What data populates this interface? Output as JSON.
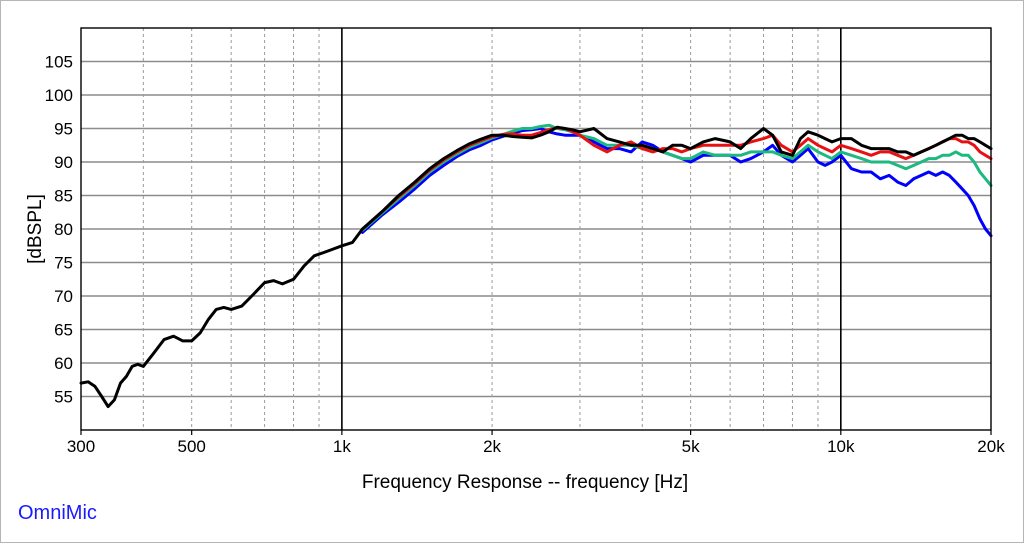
{
  "chart_data": {
    "type": "line",
    "title": "",
    "xlabel": "Frequency Response -- frequency [Hz]",
    "ylabel": "[dBSPL]",
    "x_scale": "log",
    "xlim": [
      300,
      20000
    ],
    "ylim": [
      50,
      110
    ],
    "grid": true,
    "x_major_ticks": [
      {
        "value": 300,
        "label": "300"
      },
      {
        "value": 500,
        "label": "500"
      },
      {
        "value": 1000,
        "label": "1k"
      },
      {
        "value": 2000,
        "label": "2k"
      },
      {
        "value": 5000,
        "label": "5k"
      },
      {
        "value": 10000,
        "label": "10k"
      },
      {
        "value": 20000,
        "label": "20k"
      }
    ],
    "x_minor_ticks": [
      400,
      600,
      700,
      800,
      900,
      3000,
      4000,
      6000,
      7000,
      8000,
      9000
    ],
    "y_ticks": [
      55,
      60,
      65,
      70,
      75,
      80,
      85,
      90,
      95,
      100,
      105
    ],
    "series": [
      {
        "color": "#0000ff",
        "x": [
          1100,
          1200,
          1300,
          1400,
          1500,
          1600,
          1700,
          1800,
          1900,
          2000,
          2100,
          2200,
          2300,
          2400,
          2500,
          2600,
          2700,
          2800,
          2900,
          3000,
          3200,
          3400,
          3600,
          3800,
          4000,
          4200,
          4400,
          4600,
          4800,
          5000,
          5300,
          5600,
          6000,
          6300,
          6600,
          7000,
          7300,
          7600,
          8000,
          8300,
          8600,
          9000,
          9300,
          9600,
          10000,
          10500,
          11000,
          11500,
          12000,
          12500,
          13000,
          13500,
          14000,
          14500,
          15000,
          15500,
          16000,
          16500,
          17000,
          17500,
          18000,
          18500,
          19000,
          19500,
          20000
        ],
        "y": [
          79.5,
          82.0,
          84.0,
          86.0,
          88.0,
          89.5,
          90.8,
          91.8,
          92.5,
          93.3,
          93.8,
          94.3,
          94.7,
          94.8,
          95.0,
          94.5,
          94.2,
          94.0,
          94.0,
          94.0,
          93.0,
          92.0,
          92.0,
          91.5,
          93.0,
          92.5,
          91.5,
          91.0,
          90.5,
          90.0,
          91.0,
          91.0,
          91.0,
          90.0,
          90.5,
          91.5,
          92.5,
          91.0,
          90.0,
          91.0,
          92.0,
          90.0,
          89.5,
          90.0,
          91.0,
          89.0,
          88.5,
          88.5,
          87.5,
          88.0,
          87.0,
          86.5,
          87.5,
          88.0,
          88.5,
          88.0,
          88.5,
          88.0,
          87.0,
          86.0,
          85.0,
          83.5,
          81.5,
          80.0,
          79.0
        ]
      },
      {
        "color": "#1db97f",
        "x": [
          1100,
          1200,
          1300,
          1400,
          1500,
          1600,
          1700,
          1800,
          1900,
          2000,
          2100,
          2200,
          2300,
          2400,
          2500,
          2600,
          2700,
          2800,
          2900,
          3000,
          3200,
          3400,
          3600,
          3800,
          4000,
          4200,
          4400,
          4600,
          4800,
          5000,
          5300,
          5600,
          6000,
          6300,
          6600,
          7000,
          7300,
          7600,
          8000,
          8300,
          8600,
          9000,
          9300,
          9600,
          10000,
          10500,
          11000,
          11500,
          12000,
          12500,
          13000,
          13500,
          14000,
          14500,
          15000,
          15500,
          16000,
          16500,
          17000,
          17500,
          18000,
          18500,
          19000,
          19500,
          20000
        ],
        "y": [
          79.8,
          82.3,
          84.5,
          86.5,
          88.5,
          90.0,
          91.2,
          92.2,
          92.9,
          93.6,
          94.1,
          94.6,
          95.0,
          95.0,
          95.3,
          95.5,
          95.0,
          94.8,
          94.5,
          94.0,
          93.5,
          92.5,
          92.5,
          92.5,
          92.0,
          92.0,
          91.5,
          91.0,
          90.5,
          90.5,
          91.5,
          91.0,
          91.0,
          91.0,
          91.5,
          91.5,
          91.5,
          91.0,
          90.5,
          91.5,
          92.5,
          91.5,
          91.0,
          90.5,
          91.5,
          91.0,
          90.5,
          90.0,
          90.0,
          90.0,
          89.5,
          89.0,
          89.5,
          90.0,
          90.5,
          90.5,
          91.0,
          91.0,
          91.5,
          91.0,
          91.0,
          90.0,
          88.5,
          87.5,
          86.5
        ]
      },
      {
        "color": "#e81010",
        "x": [
          1100,
          1200,
          1300,
          1400,
          1500,
          1600,
          1700,
          1800,
          1900,
          2000,
          2100,
          2200,
          2300,
          2400,
          2500,
          2600,
          2700,
          2800,
          2900,
          3000,
          3200,
          3400,
          3600,
          3800,
          4000,
          4200,
          4400,
          4600,
          4800,
          5000,
          5300,
          5600,
          6000,
          6300,
          6600,
          7000,
          7300,
          7600,
          8000,
          8300,
          8600,
          9000,
          9300,
          9600,
          10000,
          10500,
          11000,
          11500,
          12000,
          12500,
          13000,
          13500,
          14000,
          14500,
          15000,
          15500,
          16000,
          16500,
          17000,
          17500,
          18000,
          18500,
          19000,
          19500,
          20000
        ],
        "y": [
          80.0,
          82.5,
          84.8,
          86.8,
          88.8,
          90.3,
          91.5,
          92.5,
          93.2,
          93.8,
          94.1,
          94.2,
          94.0,
          94.0,
          94.4,
          94.8,
          95.1,
          95.0,
          94.5,
          94.0,
          92.5,
          91.5,
          92.5,
          93.0,
          92.0,
          91.5,
          92.0,
          92.0,
          91.5,
          92.0,
          92.5,
          92.5,
          92.5,
          92.5,
          93.0,
          93.5,
          94.0,
          92.5,
          91.5,
          92.5,
          93.5,
          92.5,
          92.0,
          91.5,
          92.5,
          92.0,
          91.5,
          91.0,
          91.5,
          91.5,
          91.0,
          90.5,
          91.0,
          91.5,
          92.0,
          92.5,
          93.0,
          93.5,
          93.5,
          93.0,
          93.0,
          92.5,
          91.5,
          91.0,
          90.5
        ]
      },
      {
        "color": "#000000",
        "x": [
          300,
          310,
          320,
          330,
          340,
          350,
          360,
          370,
          380,
          390,
          400,
          420,
          440,
          460,
          480,
          500,
          520,
          540,
          560,
          580,
          600,
          630,
          660,
          700,
          730,
          760,
          800,
          840,
          880,
          920,
          960,
          1000,
          1050,
          1100,
          1200,
          1300,
          1400,
          1500,
          1600,
          1700,
          1800,
          1900,
          2000,
          2100,
          2200,
          2300,
          2400,
          2500,
          2600,
          2700,
          2800,
          2900,
          3000,
          3200,
          3400,
          3600,
          3800,
          4000,
          4200,
          4400,
          4600,
          4800,
          5000,
          5300,
          5600,
          6000,
          6300,
          6600,
          7000,
          7300,
          7600,
          8000,
          8300,
          8600,
          9000,
          9300,
          9600,
          10000,
          10500,
          11000,
          11500,
          12000,
          12500,
          13000,
          13500,
          14000,
          14500,
          15000,
          15500,
          16000,
          16500,
          17000,
          17500,
          18000,
          18500,
          19000,
          19500,
          20000
        ],
        "y": [
          57.0,
          57.2,
          56.5,
          55.0,
          53.5,
          54.5,
          57.0,
          58.0,
          59.5,
          59.8,
          59.5,
          61.5,
          63.5,
          64.0,
          63.3,
          63.3,
          64.5,
          66.5,
          68.0,
          68.3,
          68.0,
          68.5,
          70.0,
          72.0,
          72.3,
          71.8,
          72.5,
          74.5,
          76.0,
          76.5,
          77.0,
          77.5,
          78.0,
          80.0,
          82.5,
          85.0,
          87.0,
          89.0,
          90.5,
          91.7,
          92.7,
          93.4,
          94.0,
          94.0,
          93.8,
          93.7,
          93.6,
          94.0,
          94.5,
          95.2,
          95.0,
          94.8,
          94.5,
          95.0,
          93.5,
          93.0,
          92.5,
          92.5,
          92.0,
          91.5,
          92.5,
          92.5,
          92.0,
          93.0,
          93.5,
          93.0,
          92.0,
          93.5,
          95.0,
          94.0,
          91.5,
          91.0,
          93.5,
          94.5,
          94.0,
          93.5,
          93.0,
          93.5,
          93.5,
          92.5,
          92.0,
          92.0,
          92.0,
          91.5,
          91.5,
          91.0,
          91.5,
          92.0,
          92.5,
          93.0,
          93.5,
          94.0,
          94.0,
          93.5,
          93.5,
          93.0,
          92.5,
          92.0
        ]
      }
    ]
  },
  "branding": {
    "label": "OmniMic",
    "color": "#1a1aff"
  }
}
